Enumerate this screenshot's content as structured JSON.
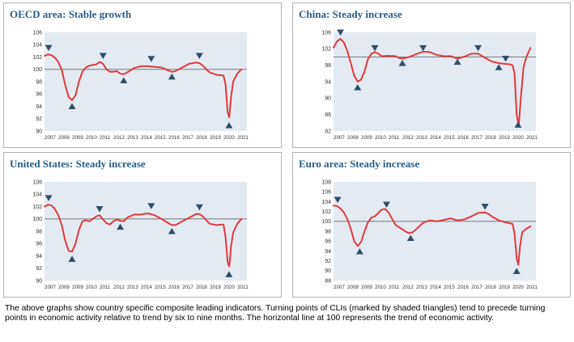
{
  "chart_data": [
    {
      "type": "line",
      "title": "OECD area: Stable growth",
      "ylim": [
        90,
        106
      ],
      "yticks": [
        90,
        92,
        94,
        96,
        98,
        100,
        102,
        104,
        106
      ],
      "xlim": [
        2007,
        2021.7
      ],
      "xticks": [
        "2007",
        "2008",
        "2009",
        "2010",
        "2011",
        "2012",
        "2013",
        "2014",
        "2015",
        "2016",
        "2017",
        "2018",
        "2019",
        "2020",
        "2021"
      ],
      "reference_line": 100,
      "series": [
        {
          "x": [
            2007.0,
            2007.25,
            2007.5,
            2007.75,
            2008.0,
            2008.25,
            2008.5,
            2008.75,
            2009.0,
            2009.25,
            2009.5,
            2009.75,
            2010.0,
            2010.25,
            2010.5,
            2010.75,
            2011.0,
            2011.25,
            2011.5,
            2011.75,
            2012.0,
            2012.25,
            2012.5,
            2012.75,
            2013.0,
            2013.5,
            2014.0,
            2014.5,
            2015.0,
            2015.5,
            2016.0,
            2016.25,
            2016.5,
            2017.0,
            2017.5,
            2018.0,
            2018.25,
            2018.5,
            2018.75,
            2019.0,
            2019.5,
            2020.0,
            2020.15,
            2020.3,
            2020.42,
            2020.55,
            2020.7,
            2021.0,
            2021.3
          ],
          "y": [
            102.2,
            102.4,
            102.3,
            101.9,
            101.2,
            99.9,
            97.5,
            95.5,
            95.0,
            95.8,
            98.0,
            99.6,
            100.3,
            100.6,
            100.7,
            100.8,
            101.2,
            100.9,
            100.0,
            99.6,
            99.6,
            99.7,
            99.3,
            99.2,
            99.5,
            100.2,
            100.5,
            100.5,
            100.4,
            100.3,
            99.8,
            99.6,
            99.7,
            100.3,
            100.9,
            101.1,
            101.0,
            100.6,
            100.0,
            99.5,
            99.1,
            99.0,
            97.5,
            93.0,
            92.2,
            95.5,
            98.0,
            99.3,
            100.0
          ],
          "color": "#e03a3e"
        }
      ],
      "turning_points": [
        {
          "x": 2007.3,
          "y": 103.5,
          "dir": "down"
        },
        {
          "x": 2009.0,
          "y": 94.0,
          "dir": "up"
        },
        {
          "x": 2011.25,
          "y": 102.2,
          "dir": "down"
        },
        {
          "x": 2012.75,
          "y": 98.2,
          "dir": "up"
        },
        {
          "x": 2014.75,
          "y": 101.7,
          "dir": "down"
        },
        {
          "x": 2016.25,
          "y": 98.8,
          "dir": "up"
        },
        {
          "x": 2018.25,
          "y": 102.2,
          "dir": "down"
        },
        {
          "x": 2020.4,
          "y": 90.9,
          "dir": "up"
        }
      ]
    },
    {
      "type": "line",
      "title": "China: Steady increase",
      "ylim": [
        82,
        106
      ],
      "yticks": [
        82,
        86,
        90,
        94,
        98,
        102,
        106
      ],
      "xlim": [
        2007,
        2021.7
      ],
      "xticks": [
        "2007",
        "2008",
        "2009",
        "2010",
        "2011",
        "2012",
        "2013",
        "2014",
        "2015",
        "2016",
        "2017",
        "2018",
        "2019",
        "2020",
        "2021"
      ],
      "reference_line": 100,
      "series": [
        {
          "x": [
            2007.0,
            2007.25,
            2007.5,
            2007.75,
            2008.0,
            2008.25,
            2008.5,
            2008.75,
            2009.0,
            2009.25,
            2009.5,
            2009.75,
            2010.0,
            2010.25,
            2010.5,
            2011.0,
            2011.5,
            2011.75,
            2012.0,
            2012.5,
            2013.0,
            2013.5,
            2014.0,
            2014.5,
            2015.0,
            2015.5,
            2016.0,
            2016.5,
            2017.0,
            2017.5,
            2018.0,
            2018.5,
            2019.0,
            2019.5,
            2019.8,
            2020.0,
            2020.15,
            2020.3,
            2020.45,
            2020.6,
            2020.8,
            2021.0,
            2021.3
          ],
          "y": [
            102.3,
            103.8,
            104.4,
            103.5,
            101.5,
            98.5,
            95.5,
            94.0,
            94.5,
            96.5,
            99.5,
            100.8,
            101.2,
            100.8,
            100.2,
            100.3,
            100.2,
            99.8,
            99.6,
            100.0,
            100.7,
            101.3,
            101.2,
            100.5,
            100.2,
            100.2,
            99.6,
            100.1,
            100.8,
            100.8,
            99.8,
            98.9,
            98.5,
            98.3,
            98.2,
            98.0,
            96.0,
            86.0,
            83.2,
            90.0,
            97.5,
            100.0,
            102.2
          ],
          "color": "#e03a3e"
        }
      ],
      "turning_points": [
        {
          "x": 2007.5,
          "y": 106.0,
          "dir": "down"
        },
        {
          "x": 2008.75,
          "y": 92.6,
          "dir": "up"
        },
        {
          "x": 2010.0,
          "y": 102.2,
          "dir": "down"
        },
        {
          "x": 2012.0,
          "y": 98.5,
          "dir": "up"
        },
        {
          "x": 2013.5,
          "y": 102.2,
          "dir": "down"
        },
        {
          "x": 2016.0,
          "y": 98.8,
          "dir": "up"
        },
        {
          "x": 2017.5,
          "y": 102.2,
          "dir": "down"
        },
        {
          "x": 2019.0,
          "y": 97.5,
          "dir": "up"
        },
        {
          "x": 2019.5,
          "y": 99.6,
          "dir": "down"
        },
        {
          "x": 2020.4,
          "y": 83.5,
          "dir": "up"
        }
      ]
    },
    {
      "type": "line",
      "title": "United States:  Steady increase",
      "ylim": [
        90,
        106
      ],
      "yticks": [
        90,
        92,
        94,
        96,
        98,
        100,
        102,
        104,
        106
      ],
      "xlim": [
        2007,
        2021.7
      ],
      "xticks": [
        "2007",
        "2008",
        "2009",
        "2010",
        "2011",
        "2012",
        "2013",
        "2014",
        "2015",
        "2016",
        "2017",
        "2018",
        "2019",
        "2020",
        "2021"
      ],
      "reference_line": 100,
      "series": [
        {
          "x": [
            2007.0,
            2007.25,
            2007.5,
            2007.75,
            2008.0,
            2008.25,
            2008.5,
            2008.75,
            2009.0,
            2009.25,
            2009.5,
            2009.75,
            2010.0,
            2010.25,
            2010.5,
            2010.75,
            2011.0,
            2011.25,
            2011.5,
            2011.75,
            2012.0,
            2012.25,
            2012.5,
            2012.75,
            2013.0,
            2013.5,
            2014.0,
            2014.5,
            2015.0,
            2015.5,
            2016.0,
            2016.25,
            2016.5,
            2017.0,
            2017.5,
            2018.0,
            2018.25,
            2018.5,
            2018.75,
            2019.0,
            2019.5,
            2020.0,
            2020.15,
            2020.3,
            2020.42,
            2020.55,
            2020.7,
            2021.0,
            2021.3
          ],
          "y": [
            102.0,
            102.3,
            102.2,
            101.6,
            100.6,
            99.0,
            96.5,
            94.8,
            94.7,
            96.0,
            98.2,
            99.6,
            99.8,
            99.6,
            100.0,
            100.4,
            100.6,
            99.9,
            99.3,
            99.1,
            99.6,
            99.9,
            99.7,
            99.6,
            100.2,
            100.7,
            100.7,
            100.9,
            100.6,
            100.0,
            99.3,
            99.0,
            99.0,
            99.6,
            100.2,
            100.8,
            100.8,
            100.4,
            99.8,
            99.2,
            99.0,
            99.1,
            97.0,
            93.0,
            92.3,
            95.5,
            97.8,
            99.2,
            100.0
          ],
          "color": "#e03a3e"
        }
      ],
      "turning_points": [
        {
          "x": 2007.3,
          "y": 103.4,
          "dir": "down"
        },
        {
          "x": 2009.0,
          "y": 93.5,
          "dir": "up"
        },
        {
          "x": 2011.0,
          "y": 101.6,
          "dir": "down"
        },
        {
          "x": 2012.5,
          "y": 98.7,
          "dir": "up"
        },
        {
          "x": 2014.75,
          "y": 102.1,
          "dir": "down"
        },
        {
          "x": 2016.25,
          "y": 98.0,
          "dir": "up"
        },
        {
          "x": 2018.25,
          "y": 101.9,
          "dir": "down"
        },
        {
          "x": 2020.4,
          "y": 91.0,
          "dir": "up"
        }
      ]
    },
    {
      "type": "line",
      "title": "Euro area: Steady increase",
      "ylim": [
        88,
        108
      ],
      "yticks": [
        88,
        90,
        92,
        94,
        96,
        98,
        100,
        102,
        104,
        106,
        108
      ],
      "xlim": [
        2007,
        2021.7
      ],
      "xticks": [
        "2007",
        "2008",
        "2009",
        "2010",
        "2011",
        "2012",
        "2013",
        "2014",
        "2015",
        "2016",
        "2017",
        "2018",
        "2019",
        "2020",
        "2021"
      ],
      "reference_line": 100,
      "series": [
        {
          "x": [
            2007.0,
            2007.25,
            2007.5,
            2007.75,
            2008.0,
            2008.25,
            2008.5,
            2008.75,
            2009.0,
            2009.25,
            2009.5,
            2009.75,
            2010.0,
            2010.25,
            2010.5,
            2010.75,
            2011.0,
            2011.25,
            2011.5,
            2011.75,
            2012.0,
            2012.25,
            2012.5,
            2012.75,
            2013.0,
            2013.5,
            2014.0,
            2014.5,
            2015.0,
            2015.5,
            2016.0,
            2016.5,
            2017.0,
            2017.5,
            2018.0,
            2018.25,
            2018.5,
            2018.75,
            2019.0,
            2019.5,
            2020.0,
            2020.15,
            2020.3,
            2020.42,
            2020.55,
            2020.7,
            2021.0,
            2021.3
          ],
          "y": [
            103.2,
            103.1,
            102.6,
            101.8,
            100.5,
            98.5,
            96.0,
            95.0,
            95.8,
            98.0,
            99.8,
            100.8,
            101.0,
            101.7,
            102.4,
            102.5,
            101.8,
            100.5,
            99.3,
            98.8,
            98.4,
            97.9,
            97.6,
            97.8,
            98.4,
            99.7,
            100.2,
            100.0,
            100.3,
            100.6,
            100.2,
            100.4,
            101.0,
            101.7,
            101.8,
            101.5,
            101.0,
            100.6,
            100.2,
            99.8,
            99.5,
            97.5,
            92.5,
            91.2,
            95.0,
            97.8,
            98.5,
            99.0
          ],
          "color": "#e03a3e"
        }
      ],
      "turning_points": [
        {
          "x": 2007.3,
          "y": 104.4,
          "dir": "down"
        },
        {
          "x": 2008.9,
          "y": 93.9,
          "dir": "up"
        },
        {
          "x": 2010.85,
          "y": 103.4,
          "dir": "down"
        },
        {
          "x": 2012.6,
          "y": 96.6,
          "dir": "up"
        },
        {
          "x": 2018.0,
          "y": 103.0,
          "dir": "down"
        },
        {
          "x": 2020.3,
          "y": 89.9,
          "dir": "up"
        }
      ]
    }
  ],
  "caption": "The above graphs show country specific composite leading indicators. Turning points of CLIs (marked by shaded triangles) tend to precede turning points in economic activity relative to trend by six to nine months. The horizontal line at 100 represents the trend of economic activity.",
  "colors": {
    "title": "#2a5e86",
    "plot_background": "#e4eaf2",
    "series_line": "#e03a3e",
    "reference_line": "#777777",
    "triangle": "#2f4f68",
    "panel_border": "#b4b4b4"
  },
  "icons": {
    "peak": "triangle-down-icon",
    "trough": "triangle-up-icon"
  }
}
